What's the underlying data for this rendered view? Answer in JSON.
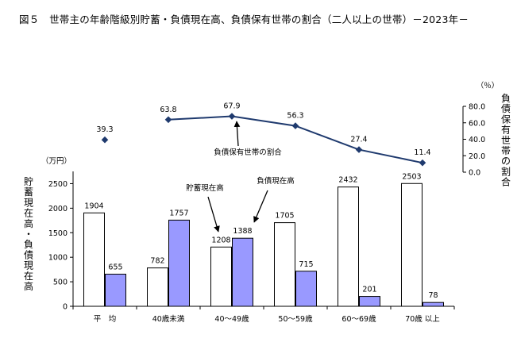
{
  "title": "図５　世帯主の年齢階級別貯蓄・負債現在高、負債保有世帯の割合（二人以上の世帯）－2023年－",
  "chart_data": [
    {
      "type": "bar",
      "categories": [
        "平　均",
        "40歳未満",
        "40～49歳",
        "50～59歳",
        "60～69歳",
        "70歳 以上"
      ],
      "series": [
        {
          "name": "貯蓄現在高",
          "values": [
            1904,
            782,
            1208,
            1705,
            2432,
            2503
          ],
          "color": "#ffffff"
        },
        {
          "name": "負債現在高",
          "values": [
            655,
            1757,
            1388,
            715,
            201,
            78
          ],
          "color": "#9999ff"
        }
      ],
      "ylabel": "貯蓄現在高・負債現在高",
      "yunit": "（万円）",
      "ylim": [
        0,
        2750
      ],
      "yticks": [
        0,
        500,
        1000,
        1500,
        2000,
        2500
      ],
      "annotations": [
        "貯蓄現在高",
        "負債現在高"
      ]
    },
    {
      "type": "line",
      "categories": [
        "平　均",
        "40歳未満",
        "40～49歳",
        "50～59歳",
        "60～69歳",
        "70歳 以上"
      ],
      "series": [
        {
          "name": "負債保有世帯の割合",
          "values": [
            39.3,
            63.8,
            67.9,
            56.3,
            27.4,
            11.4
          ],
          "color": "#1f3a6e"
        }
      ],
      "ylabel": "負債保有世帯の割合",
      "yunit": "（％）",
      "ylim": [
        0,
        80
      ],
      "yticks": [
        "0.0",
        "20.0",
        "40.0",
        "60.0",
        "80.0"
      ],
      "line_note": "平均 is shown as a marker only, not joined to the line",
      "annotations": [
        "負債保有世帯の割合"
      ]
    }
  ]
}
